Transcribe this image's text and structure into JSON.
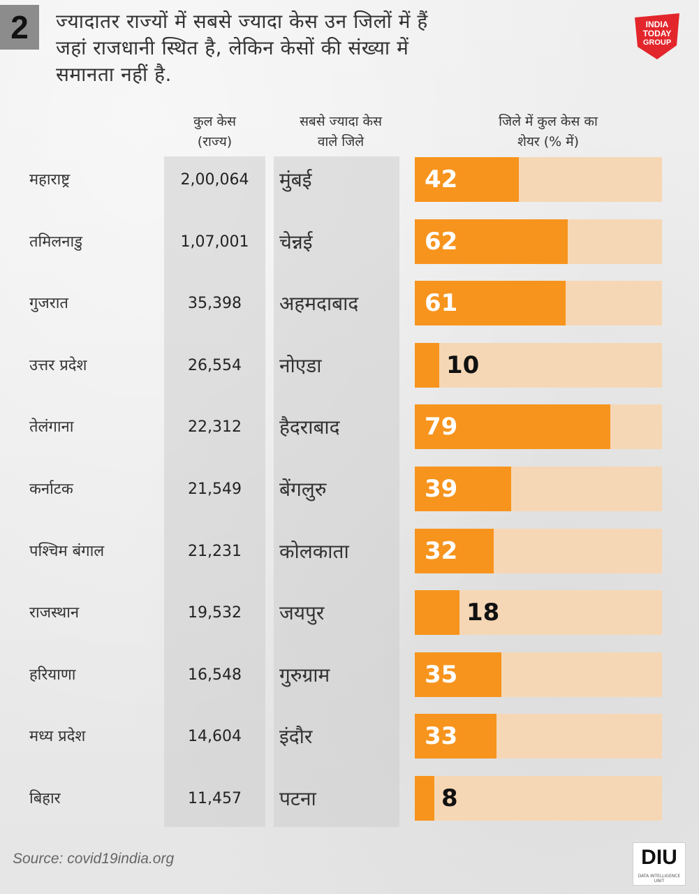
{
  "badge": "2",
  "headline": {
    "line1": "ज्यादातर राज्यों में सबसे ज्यादा केस उन जिलों में हैं",
    "line2": "जहां राजधानी स्थित है, लेकिन केसों की संख्या में",
    "line3": "समानता नहीं है."
  },
  "logo": {
    "line1": "INDIA",
    "line2": "TODAY",
    "line3": "GROUP",
    "color": "#e3262b"
  },
  "columns": {
    "total_line1": "कुल केस",
    "total_line2": "(राज्य)",
    "district_line1": "सबसे ज्यादा केस",
    "district_line2": "वाले जिले",
    "share_line1": "जिले में कुल केस का",
    "share_line2": "शेयर (% में)"
  },
  "colors": {
    "bar": "#f7941d",
    "track": "#f6d7b5"
  },
  "chart_data": {
    "type": "bar",
    "orientation": "horizontal",
    "title": "ज्यादातर राज्यों में सबसे ज्यादा केस उन जिलों में हैं जहां राजधानी स्थित है, लेकिन केसों की संख्या में समानता नहीं है.",
    "xlim": [
      0,
      100
    ],
    "rows": [
      {
        "state": "महाराष्ट्र",
        "total": "2,00,064",
        "district": "मुंबई",
        "share": 42
      },
      {
        "state": "तमिलनाडु",
        "total": "1,07,001",
        "district": "चेन्नई",
        "share": 62
      },
      {
        "state": "गुजरात",
        "total": "35,398",
        "district": "अहमदाबाद",
        "share": 61
      },
      {
        "state": "उत्तर प्रदेश",
        "total": "26,554",
        "district": "नोएडा",
        "share": 10
      },
      {
        "state": "तेलंगाना",
        "total": "22,312",
        "district": "हैदराबाद",
        "share": 79
      },
      {
        "state": "कर्नाटक",
        "total": "21,549",
        "district": "बेंगलुरु",
        "share": 39
      },
      {
        "state": "पश्चिम बंगाल",
        "total": "21,231",
        "district": "कोलकाता",
        "share": 32
      },
      {
        "state": "राजस्थान",
        "total": "19,532",
        "district": "जयपुर",
        "share": 18
      },
      {
        "state": "हरियाणा",
        "total": "16,548",
        "district": "गुरुग्राम",
        "share": 35
      },
      {
        "state": "मध्य प्रदेश",
        "total": "14,604",
        "district": "इंदौर",
        "share": 33
      },
      {
        "state": "बिहार",
        "total": "11,457",
        "district": "पटना",
        "share": 8
      }
    ]
  },
  "source": "Source: covid19india.org",
  "diu": {
    "text": "DIU",
    "sub": "DATA INTELLIGENCE UNIT"
  }
}
